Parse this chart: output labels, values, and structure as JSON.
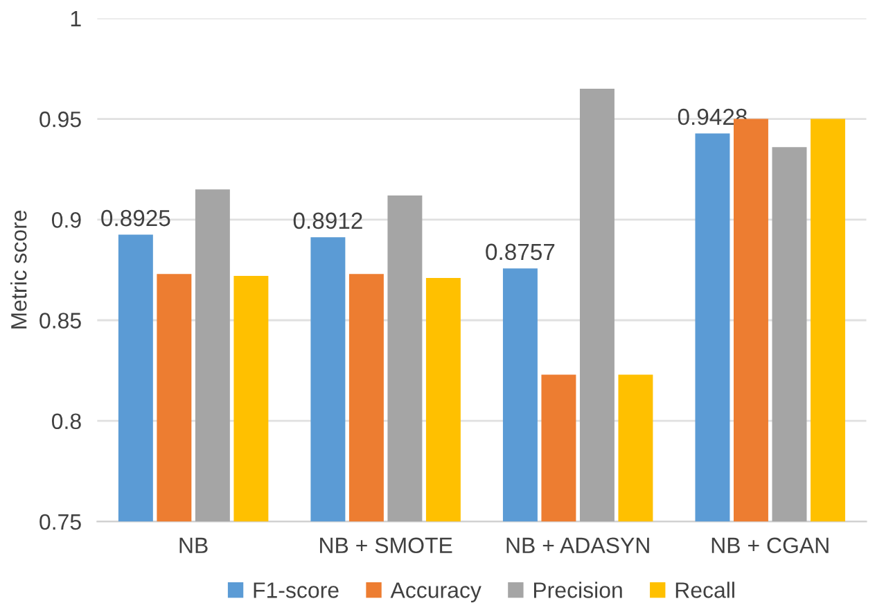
{
  "chart_data": {
    "type": "bar",
    "ylabel": "Metric score",
    "categories": [
      "NB",
      "NB + SMOTE",
      "NB + ADASYN",
      "NB + CGAN"
    ],
    "series": [
      {
        "name": "F1-score",
        "color": "#5b9bd5",
        "values": [
          0.8925,
          0.8912,
          0.8757,
          0.9428
        ],
        "value_labels": [
          "0.8925",
          "0.8912",
          "0.8757",
          "0.9428"
        ]
      },
      {
        "name": "Accuracy",
        "color": "#ed7d31",
        "values": [
          0.873,
          0.873,
          0.823,
          0.95
        ]
      },
      {
        "name": "Precision",
        "color": "#a5a5a5",
        "values": [
          0.915,
          0.912,
          0.965,
          0.936
        ]
      },
      {
        "name": "Recall",
        "color": "#ffc000",
        "values": [
          0.872,
          0.871,
          0.823,
          0.95
        ]
      }
    ],
    "ylim": [
      0.75,
      1
    ],
    "yticks": [
      0.75,
      0.8,
      0.85,
      0.9,
      0.95,
      1
    ],
    "grid": "y",
    "legend": "bottom"
  }
}
